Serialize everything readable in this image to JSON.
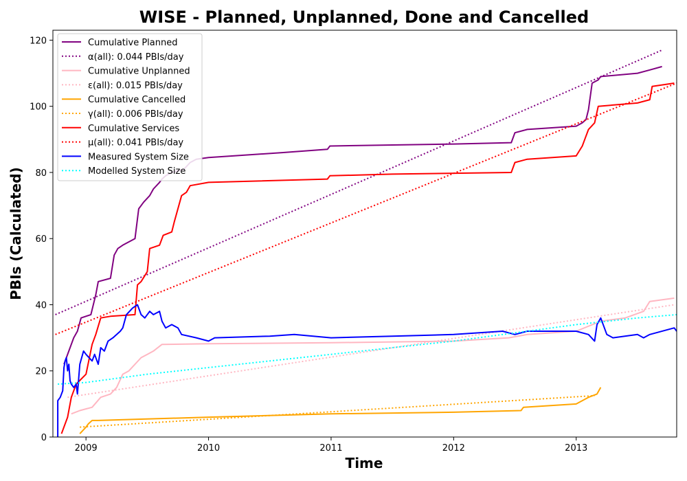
{
  "chart_data": {
    "type": "line",
    "title": "WISE - Planned, Unplanned, Done  and Cancelled",
    "xlabel": "Time",
    "ylabel": "PBIs (Calculated)",
    "xlim": [
      2008.73,
      2013.82
    ],
    "ylim": [
      0,
      123
    ],
    "x_ticks": [
      2009,
      2010,
      2011,
      2012,
      2013
    ],
    "x_tick_labels": [
      "2009",
      "2010",
      "2011",
      "2012",
      "2013"
    ],
    "y_ticks": [
      0,
      20,
      40,
      60,
      80,
      100,
      120
    ],
    "y_tick_labels": [
      "0",
      "20",
      "40",
      "60",
      "80",
      "100",
      "120"
    ],
    "legend_position": "top-left",
    "grid": false,
    "series": [
      {
        "name": "Cumulative Planned",
        "color": "#800080",
        "style": "solid",
        "points": [
          [
            2008.82,
            22
          ],
          [
            2008.9,
            30
          ],
          [
            2008.93,
            32
          ],
          [
            2008.96,
            36
          ],
          [
            2009.04,
            37
          ],
          [
            2009.08,
            43
          ],
          [
            2009.1,
            47
          ],
          [
            2009.2,
            48
          ],
          [
            2009.23,
            55
          ],
          [
            2009.26,
            57
          ],
          [
            2009.3,
            58
          ],
          [
            2009.35,
            59
          ],
          [
            2009.4,
            60
          ],
          [
            2009.43,
            69
          ],
          [
            2009.47,
            71
          ],
          [
            2009.52,
            73
          ],
          [
            2009.55,
            75
          ],
          [
            2009.6,
            77
          ],
          [
            2009.62,
            78
          ],
          [
            2009.65,
            79
          ],
          [
            2009.7,
            80
          ],
          [
            2009.8,
            81
          ],
          [
            2009.85,
            83
          ],
          [
            2009.9,
            84
          ],
          [
            2010.0,
            84.5
          ],
          [
            2010.2,
            85
          ],
          [
            2010.6,
            86
          ],
          [
            2010.97,
            87
          ],
          [
            2010.99,
            88
          ],
          [
            2011.5,
            88.3
          ],
          [
            2012.0,
            88.6
          ],
          [
            2012.47,
            89
          ],
          [
            2012.5,
            92
          ],
          [
            2012.6,
            93
          ],
          [
            2013.0,
            94
          ],
          [
            2013.05,
            95
          ],
          [
            2013.08,
            96
          ],
          [
            2013.1,
            99
          ],
          [
            2013.13,
            107
          ],
          [
            2013.18,
            108
          ],
          [
            2013.2,
            109
          ],
          [
            2013.5,
            110
          ],
          [
            2013.6,
            111
          ],
          [
            2013.7,
            112
          ]
        ]
      },
      {
        "name": "α(all): 0.044 PBIs/day",
        "color": "#800080",
        "style": "dotted",
        "points": [
          [
            2008.75,
            37
          ],
          [
            2013.7,
            117
          ]
        ]
      },
      {
        "name": "Cumulative Unplanned",
        "color": "#ffb6c1",
        "style": "solid",
        "points": [
          [
            2008.88,
            7
          ],
          [
            2008.95,
            8
          ],
          [
            2009.05,
            9
          ],
          [
            2009.12,
            12
          ],
          [
            2009.2,
            13
          ],
          [
            2009.25,
            15
          ],
          [
            2009.3,
            19
          ],
          [
            2009.35,
            20
          ],
          [
            2009.45,
            24
          ],
          [
            2009.5,
            25
          ],
          [
            2009.55,
            26
          ],
          [
            2009.62,
            28
          ],
          [
            2010.0,
            28.2
          ],
          [
            2011.0,
            28.5
          ],
          [
            2012.0,
            29
          ],
          [
            2012.45,
            30
          ],
          [
            2012.6,
            31
          ],
          [
            2013.0,
            32
          ],
          [
            2013.2,
            35
          ],
          [
            2013.4,
            36
          ],
          [
            2013.55,
            38
          ],
          [
            2013.6,
            41
          ],
          [
            2013.8,
            42
          ]
        ]
      },
      {
        "name": "ε(all): 0.015 PBIs/day",
        "color": "#ffb6c1",
        "style": "dotted",
        "points": [
          [
            2008.85,
            12
          ],
          [
            2013.8,
            40
          ]
        ]
      },
      {
        "name": "Cumulative Cancelled",
        "color": "#ffa500",
        "style": "solid",
        "points": [
          [
            2008.95,
            1
          ],
          [
            2009.0,
            3
          ],
          [
            2009.02,
            4
          ],
          [
            2009.05,
            5
          ],
          [
            2009.1,
            5
          ],
          [
            2010.0,
            6
          ],
          [
            2011.0,
            7
          ],
          [
            2012.0,
            7.5
          ],
          [
            2012.55,
            8
          ],
          [
            2012.57,
            9
          ],
          [
            2013.0,
            10
          ],
          [
            2013.1,
            12
          ],
          [
            2013.17,
            13
          ],
          [
            2013.2,
            15
          ]
        ]
      },
      {
        "name": "γ(all): 0.006 PBIs/day",
        "color": "#ffa500",
        "style": "dotted",
        "points": [
          [
            2008.95,
            3
          ],
          [
            2013.15,
            12.5
          ]
        ]
      },
      {
        "name": "Cumulative Services",
        "color": "#ff0000",
        "style": "solid",
        "points": [
          [
            2008.8,
            1
          ],
          [
            2008.85,
            6
          ],
          [
            2008.88,
            12
          ],
          [
            2008.92,
            16
          ],
          [
            2009.0,
            19
          ],
          [
            2009.05,
            28
          ],
          [
            2009.08,
            31
          ],
          [
            2009.12,
            36
          ],
          [
            2009.2,
            36.5
          ],
          [
            2009.4,
            37
          ],
          [
            2009.42,
            46
          ],
          [
            2009.45,
            47
          ],
          [
            2009.5,
            50
          ],
          [
            2009.52,
            57
          ],
          [
            2009.6,
            58
          ],
          [
            2009.63,
            61
          ],
          [
            2009.7,
            62
          ],
          [
            2009.72,
            65
          ],
          [
            2009.78,
            73
          ],
          [
            2009.82,
            74
          ],
          [
            2009.85,
            76
          ],
          [
            2010.0,
            77
          ],
          [
            2010.97,
            78
          ],
          [
            2010.99,
            79
          ],
          [
            2011.5,
            79.5
          ],
          [
            2012.47,
            80
          ],
          [
            2012.5,
            83
          ],
          [
            2012.6,
            84
          ],
          [
            2013.0,
            85
          ],
          [
            2013.05,
            88
          ],
          [
            2013.07,
            90
          ],
          [
            2013.1,
            93
          ],
          [
            2013.15,
            95
          ],
          [
            2013.18,
            100
          ],
          [
            2013.5,
            101
          ],
          [
            2013.6,
            102
          ],
          [
            2013.62,
            106
          ],
          [
            2013.8,
            107
          ]
        ]
      },
      {
        "name": "μ(all): 0.041 PBIs/day",
        "color": "#ff0000",
        "style": "dotted",
        "points": [
          [
            2008.75,
            31
          ],
          [
            2013.82,
            107
          ]
        ]
      },
      {
        "name": "Measured System Size",
        "color": "#0000ff",
        "style": "solid",
        "points": [
          [
            2008.77,
            0
          ],
          [
            2008.77,
            11
          ],
          [
            2008.79,
            12
          ],
          [
            2008.81,
            14
          ],
          [
            2008.82,
            21
          ],
          [
            2008.83,
            23
          ],
          [
            2008.84,
            24
          ],
          [
            2008.85,
            20
          ],
          [
            2008.86,
            22
          ],
          [
            2008.87,
            17
          ],
          [
            2008.88,
            16
          ],
          [
            2008.9,
            15
          ],
          [
            2008.92,
            16
          ],
          [
            2008.93,
            13
          ],
          [
            2008.95,
            22
          ],
          [
            2008.98,
            26
          ],
          [
            2009.0,
            25
          ],
          [
            2009.05,
            23
          ],
          [
            2009.07,
            25
          ],
          [
            2009.1,
            22
          ],
          [
            2009.12,
            27
          ],
          [
            2009.15,
            26
          ],
          [
            2009.18,
            29
          ],
          [
            2009.22,
            30
          ],
          [
            2009.28,
            32
          ],
          [
            2009.3,
            33
          ],
          [
            2009.33,
            37
          ],
          [
            2009.38,
            39
          ],
          [
            2009.42,
            40
          ],
          [
            2009.45,
            37
          ],
          [
            2009.48,
            36
          ],
          [
            2009.52,
            38
          ],
          [
            2009.55,
            37
          ],
          [
            2009.6,
            38
          ],
          [
            2009.62,
            35
          ],
          [
            2009.65,
            33
          ],
          [
            2009.7,
            34
          ],
          [
            2009.75,
            33
          ],
          [
            2009.78,
            31
          ],
          [
            2009.9,
            30
          ],
          [
            2010.0,
            29
          ],
          [
            2010.05,
            30
          ],
          [
            2010.5,
            30.5
          ],
          [
            2010.7,
            31
          ],
          [
            2011.0,
            30
          ],
          [
            2011.5,
            30.5
          ],
          [
            2012.0,
            31
          ],
          [
            2012.4,
            32
          ],
          [
            2012.5,
            31
          ],
          [
            2012.6,
            32
          ],
          [
            2013.0,
            32
          ],
          [
            2013.1,
            31
          ],
          [
            2013.15,
            29
          ],
          [
            2013.17,
            34
          ],
          [
            2013.2,
            36
          ],
          [
            2013.25,
            31
          ],
          [
            2013.3,
            30
          ],
          [
            2013.5,
            31
          ],
          [
            2013.55,
            30
          ],
          [
            2013.6,
            31
          ],
          [
            2013.8,
            33
          ],
          [
            2013.82,
            32
          ]
        ]
      },
      {
        "name": "Modelled System Size",
        "color": "#00ffff",
        "style": "dotted",
        "points": [
          [
            2008.77,
            16
          ],
          [
            2009.0,
            16.5
          ],
          [
            2009.5,
            19
          ],
          [
            2010.0,
            21
          ],
          [
            2010.5,
            23
          ],
          [
            2011.0,
            25
          ],
          [
            2011.5,
            27
          ],
          [
            2012.0,
            29
          ],
          [
            2012.5,
            31.5
          ],
          [
            2013.0,
            34
          ],
          [
            2013.5,
            36
          ],
          [
            2013.82,
            37
          ]
        ]
      }
    ]
  }
}
